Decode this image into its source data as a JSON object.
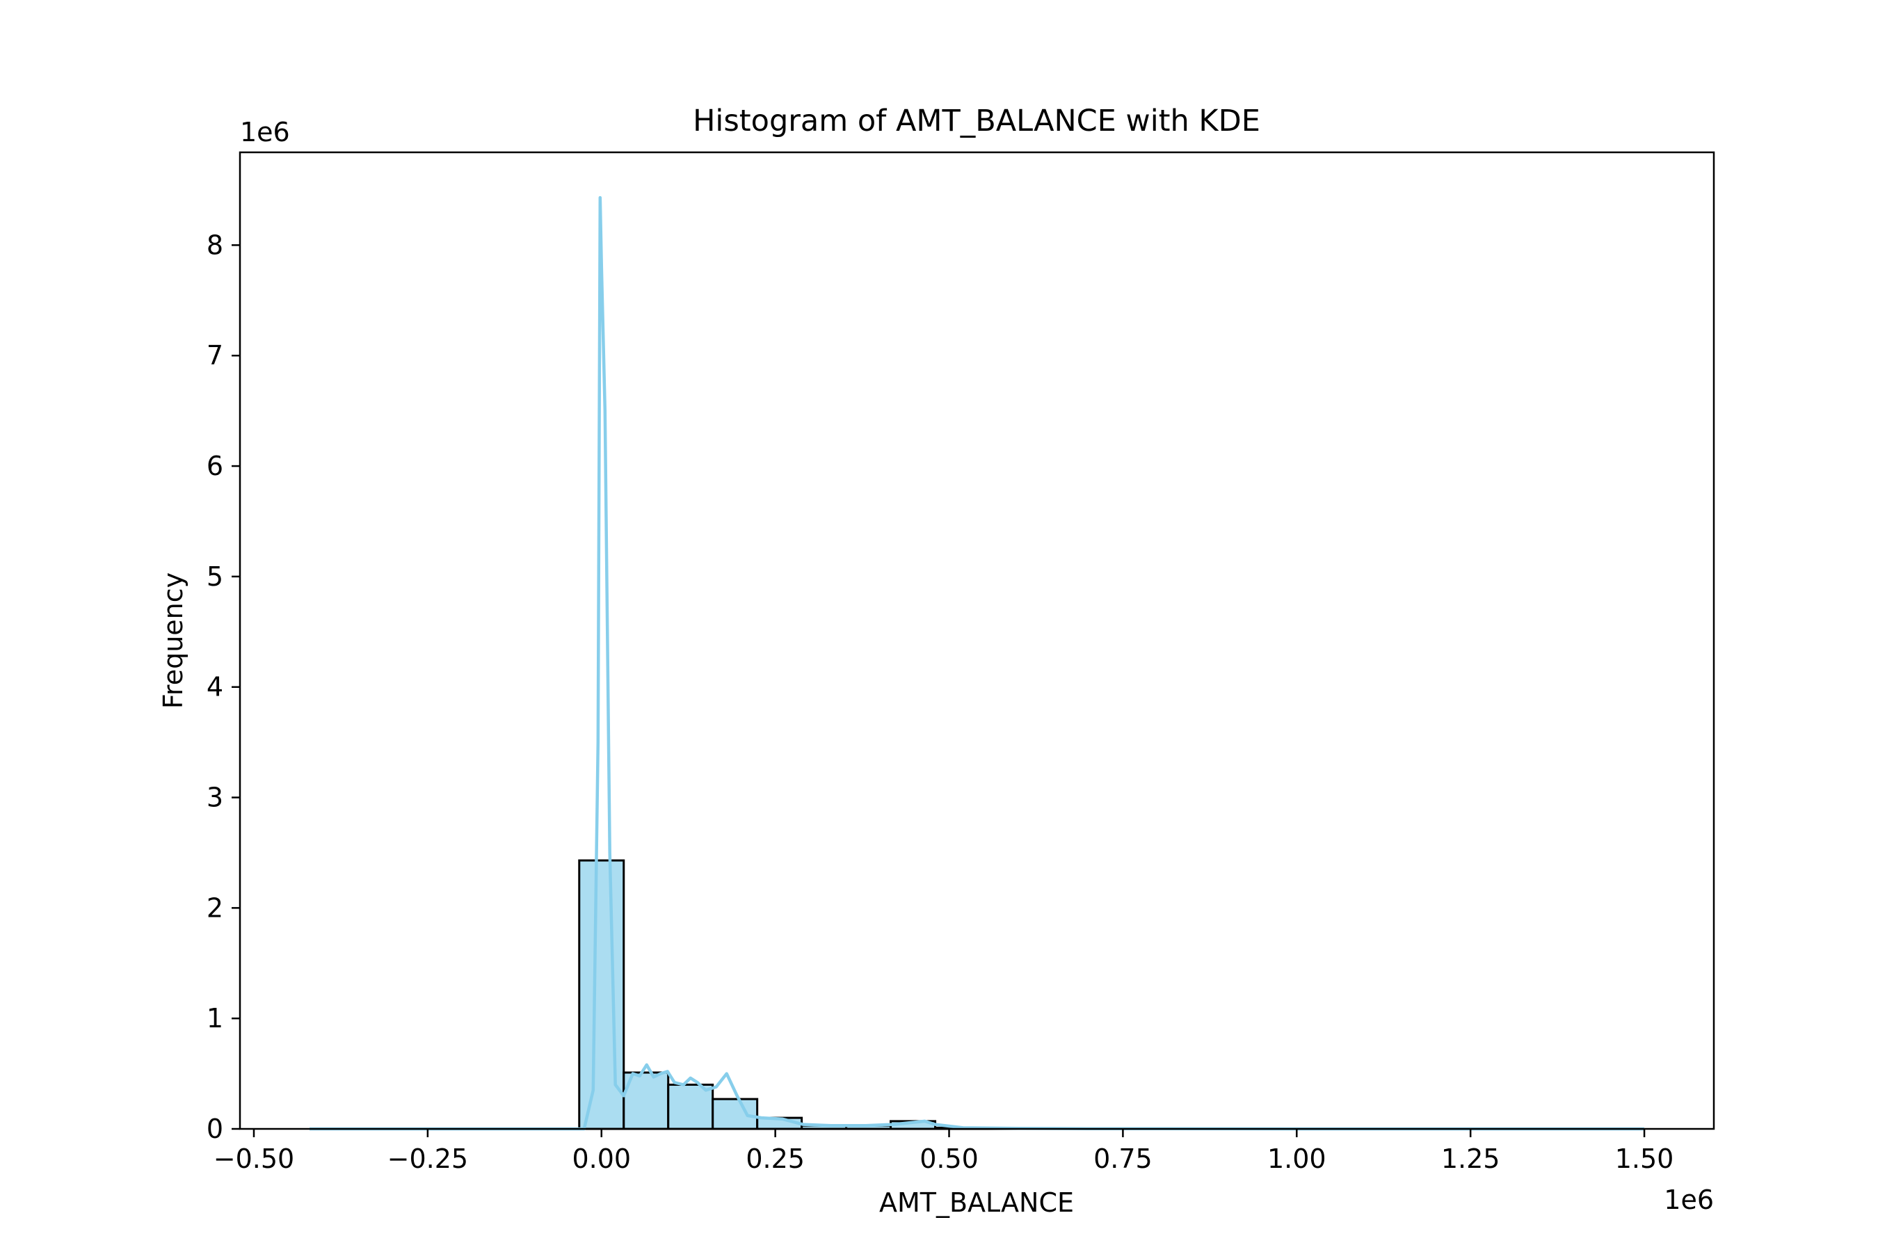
{
  "chart_data": {
    "type": "bar",
    "title": "Histogram of AMT_BALANCE with KDE",
    "xlabel": "AMT_BALANCE",
    "ylabel": "Frequency",
    "x_offset_label": "1e6",
    "y_offset_label": "1e6",
    "x_scale_factor": 1000000,
    "y_scale_factor": 1000000,
    "xlim": [
      -520000,
      1600000
    ],
    "ylim": [
      0,
      8.84
    ],
    "xticks": [
      -0.5,
      -0.25,
      0.0,
      0.25,
      0.5,
      0.75,
      1.0,
      1.25,
      1.5
    ],
    "xtick_labels": [
      "−0.50",
      "−0.25",
      "0.00",
      "0.25",
      "0.50",
      "0.75",
      "1.00",
      "1.25",
      "1.50"
    ],
    "yticks": [
      0,
      1,
      2,
      3,
      4,
      5,
      6,
      7,
      8
    ],
    "ytick_labels": [
      "0",
      "1",
      "2",
      "3",
      "4",
      "5",
      "6",
      "7",
      "8"
    ],
    "grid": false,
    "colors": {
      "bar_fill": "#87ceeb",
      "bar_fill_opacity": 0.7,
      "bar_edge": "#000000",
      "kde_line": "#87ceeb"
    },
    "series": [
      {
        "kind": "histogram",
        "bins": [
          {
            "x0": -32000,
            "x1": 32000,
            "count": 2.43
          },
          {
            "x0": 32000,
            "x1": 96000,
            "count": 0.51
          },
          {
            "x0": 96000,
            "x1": 160000,
            "count": 0.4
          },
          {
            "x0": 160000,
            "x1": 224000,
            "count": 0.27
          },
          {
            "x0": 224000,
            "x1": 288000,
            "count": 0.1
          },
          {
            "x0": 288000,
            "x1": 352000,
            "count": 0.03
          },
          {
            "x0": 352000,
            "x1": 416000,
            "count": 0.03
          },
          {
            "x0": 416000,
            "x1": 480000,
            "count": 0.07
          },
          {
            "x0": 480000,
            "x1": 544000,
            "count": 0.01
          },
          {
            "x0": 544000,
            "x1": 608000,
            "count": 0.005
          },
          {
            "x0": 608000,
            "x1": 672000,
            "count": 0.003
          },
          {
            "x0": 672000,
            "x1": 736000,
            "count": 0.002
          },
          {
            "x0": 736000,
            "x1": 800000,
            "count": 0.002
          }
        ]
      },
      {
        "kind": "kde",
        "x": [
          -420000,
          -200000,
          -60000,
          -25000,
          -12000,
          -5000,
          -2000,
          0,
          5000,
          12000,
          20000,
          32000,
          45000,
          55000,
          65000,
          75000,
          85000,
          95000,
          105000,
          118000,
          128000,
          138000,
          150000,
          165000,
          180000,
          195000,
          210000,
          230000,
          260000,
          290000,
          330000,
          380000,
          420000,
          450000,
          465000,
          480000,
          520000,
          600000,
          700000,
          800000,
          1000000,
          1500000
        ],
        "y": [
          0.0,
          0.0,
          0.0,
          0.0,
          0.35,
          3.5,
          8.43,
          7.8,
          6.5,
          2.5,
          0.4,
          0.3,
          0.5,
          0.48,
          0.58,
          0.47,
          0.5,
          0.52,
          0.42,
          0.4,
          0.46,
          0.42,
          0.35,
          0.38,
          0.5,
          0.3,
          0.12,
          0.1,
          0.09,
          0.04,
          0.03,
          0.03,
          0.04,
          0.06,
          0.07,
          0.04,
          0.01,
          0.005,
          0.002,
          0.001,
          0.0,
          0.0
        ]
      }
    ]
  }
}
